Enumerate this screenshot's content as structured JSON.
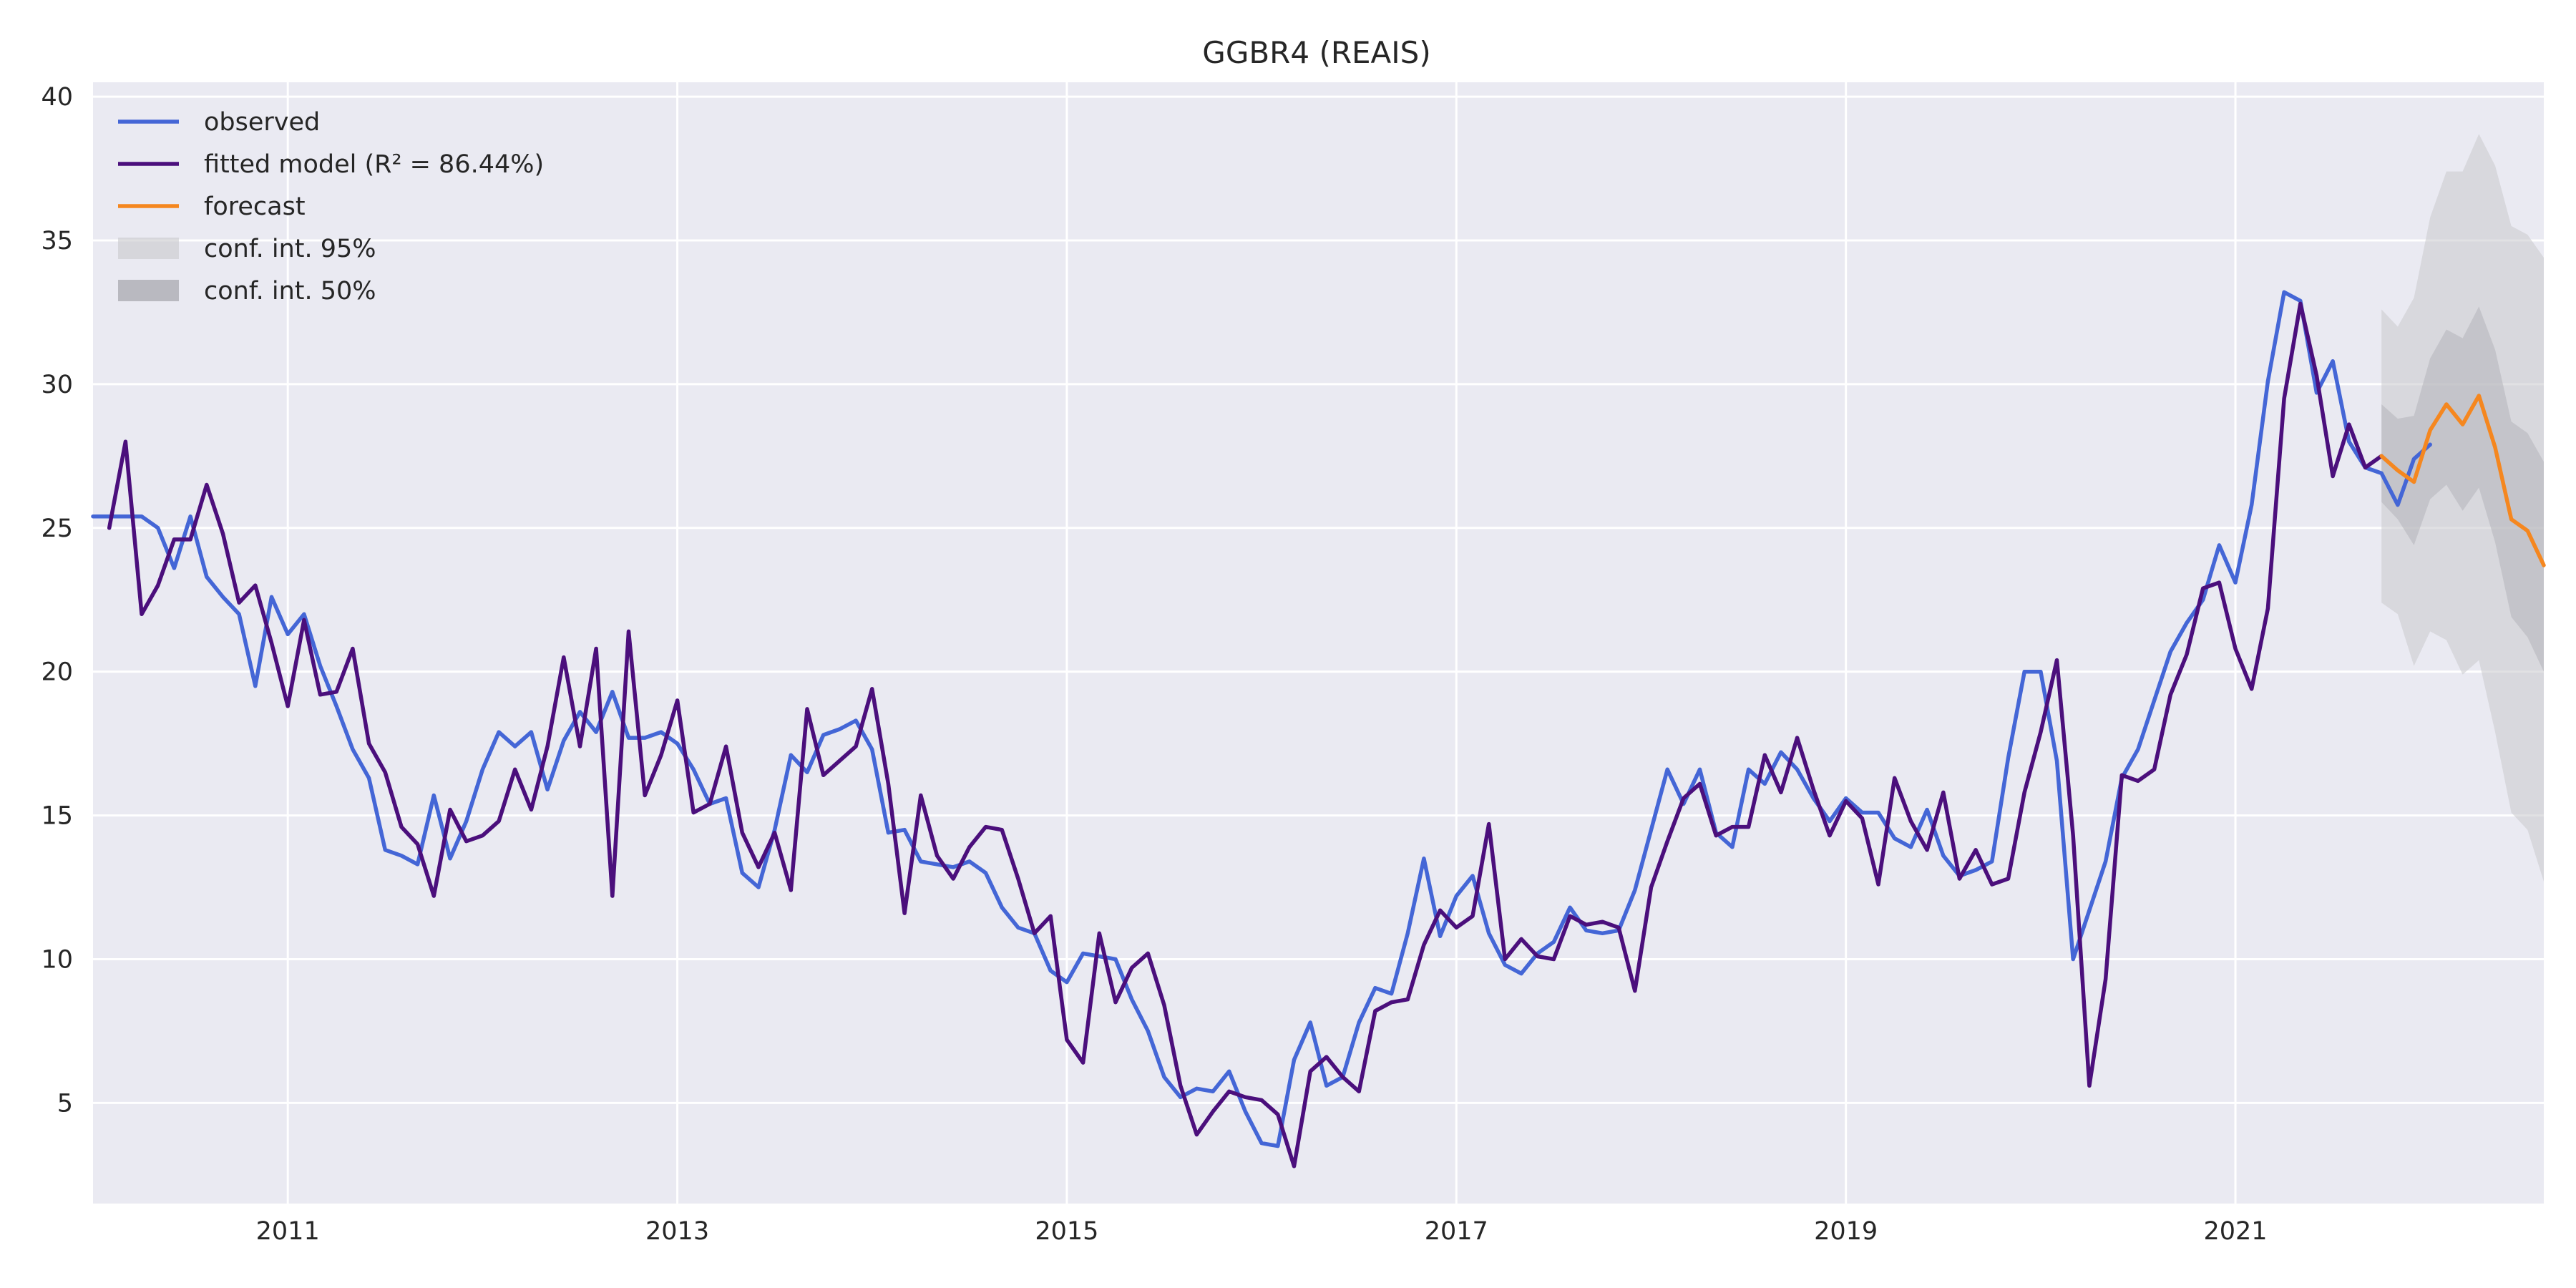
{
  "chart_data": {
    "type": "line",
    "title": "GGBR4 (REAIS)",
    "xlabel": "",
    "ylabel": "",
    "x_range": [
      "2010-01",
      "2022-08"
    ],
    "ylim": [
      1.5,
      40.5
    ],
    "grid": true,
    "legend_placement": "top-left",
    "x_ticks": [
      "2011",
      "2013",
      "2015",
      "2017",
      "2019",
      "2021"
    ],
    "y_ticks": [
      5,
      10,
      15,
      20,
      25,
      30,
      35,
      40
    ],
    "series": [
      {
        "name": "observed",
        "color": "#4466d6",
        "start": "2010-01",
        "values": [
          25.4,
          25.4,
          25.4,
          25.4,
          25.0,
          23.6,
          25.4,
          23.3,
          22.6,
          22.0,
          19.5,
          22.6,
          21.3,
          22.0,
          20.2,
          18.8,
          17.3,
          16.3,
          13.8,
          13.6,
          13.3,
          15.7,
          13.5,
          14.8,
          16.6,
          17.9,
          17.4,
          17.9,
          15.9,
          17.6,
          18.6,
          17.9,
          19.3,
          17.7,
          17.7,
          17.9,
          17.5,
          16.6,
          15.4,
          15.6,
          13.0,
          12.5,
          14.5,
          17.1,
          16.5,
          17.8,
          18.0,
          18.3,
          17.3,
          14.4,
          14.5,
          13.4,
          13.3,
          13.2,
          13.4,
          13.0,
          11.8,
          11.1,
          10.9,
          9.6,
          9.2,
          10.2,
          10.1,
          10.0,
          8.6,
          7.5,
          5.9,
          5.2,
          5.5,
          5.4,
          6.1,
          4.7,
          3.6,
          3.5,
          6.5,
          7.8,
          5.6,
          5.9,
          7.8,
          9.0,
          8.8,
          10.9,
          13.5,
          10.8,
          12.2,
          12.9,
          10.9,
          9.8,
          9.5,
          10.2,
          10.6,
          11.8,
          11.0,
          10.9,
          11.0,
          12.4,
          14.5,
          16.6,
          15.4,
          16.6,
          14.4,
          13.9,
          16.6,
          16.1,
          17.2,
          16.6,
          15.6,
          14.8,
          15.6,
          15.1,
          15.1,
          14.2,
          13.9,
          15.2,
          13.6,
          12.9,
          13.1,
          13.4,
          17.0,
          20.0,
          20.0,
          16.9,
          10.0,
          11.7,
          13.4,
          16.3,
          17.3,
          19.0,
          20.7,
          21.7,
          22.5,
          24.4,
          23.1,
          25.8,
          30.1,
          33.2,
          32.9,
          29.7,
          30.8,
          28.0,
          27.1,
          26.9,
          25.8,
          27.4,
          27.9
        ]
      },
      {
        "name": "fitted model (R² = 86.44%)",
        "color": "#4b0f7c",
        "start": "2010-02",
        "values": [
          25.0,
          28.0,
          22.0,
          23.0,
          24.6,
          24.6,
          26.5,
          24.8,
          22.4,
          23.0,
          21.0,
          18.8,
          21.8,
          19.2,
          19.3,
          20.8,
          17.5,
          16.5,
          14.6,
          14.0,
          12.2,
          15.2,
          14.1,
          14.3,
          14.8,
          16.6,
          15.2,
          17.4,
          20.5,
          17.4,
          20.8,
          12.2,
          21.4,
          15.7,
          17.1,
          19.0,
          15.1,
          15.4,
          17.4,
          14.4,
          13.2,
          14.4,
          12.4,
          18.7,
          16.4,
          16.9,
          17.4,
          19.4,
          16.1,
          11.6,
          15.7,
          13.6,
          12.8,
          13.9,
          14.6,
          14.5,
          12.8,
          10.9,
          11.5,
          7.2,
          6.4,
          10.9,
          8.5,
          9.7,
          10.2,
          8.4,
          5.6,
          3.9,
          4.7,
          5.4,
          5.2,
          5.1,
          4.6,
          2.8,
          6.1,
          6.6,
          5.9,
          5.4,
          8.2,
          8.5,
          8.6,
          10.5,
          11.7,
          11.1,
          11.5,
          14.7,
          10.0,
          10.7,
          10.1,
          10.0,
          11.5,
          11.2,
          11.3,
          11.1,
          8.9,
          12.5,
          14.1,
          15.6,
          16.1,
          14.3,
          14.6,
          14.6,
          17.1,
          15.8,
          17.7,
          15.9,
          14.3,
          15.5,
          14.9,
          12.6,
          16.3,
          14.8,
          13.8,
          15.8,
          12.8,
          13.8,
          12.6,
          12.8,
          15.8,
          17.9,
          20.4,
          14.3,
          5.6,
          9.3,
          16.4,
          16.2,
          16.6,
          19.2,
          20.6,
          22.9,
          23.1,
          20.8,
          19.4,
          22.2,
          29.5,
          32.8,
          30.3,
          26.8,
          28.6,
          27.1,
          27.5
        ]
      },
      {
        "name": "forecast",
        "color": "#f5871f",
        "start": "2021-10",
        "values": [
          27.5,
          27.0,
          26.6,
          28.4,
          29.3,
          28.6,
          29.6,
          27.8,
          25.3,
          24.9,
          23.7
        ]
      }
    ],
    "confidence_intervals": [
      {
        "name": "conf. int. 95%",
        "color": "#c8c8cc",
        "start": "2021-10",
        "lower": [
          22.4,
          22.0,
          20.2,
          21.4,
          21.1,
          19.9,
          20.4,
          17.9,
          15.1,
          14.5,
          12.7
        ],
        "upper": [
          32.6,
          32.0,
          33.0,
          35.8,
          37.4,
          37.4,
          38.7,
          37.6,
          35.5,
          35.2,
          34.4
        ]
      },
      {
        "name": "conf. int. 50%",
        "color": "#b4b4ba",
        "start": "2021-10",
        "lower": [
          25.9,
          25.3,
          24.4,
          26.0,
          26.5,
          25.6,
          26.4,
          24.5,
          21.9,
          21.2,
          20.0
        ],
        "upper": [
          29.3,
          28.8,
          28.9,
          30.9,
          31.9,
          31.6,
          32.7,
          31.2,
          28.7,
          28.3,
          27.3
        ]
      }
    ]
  }
}
